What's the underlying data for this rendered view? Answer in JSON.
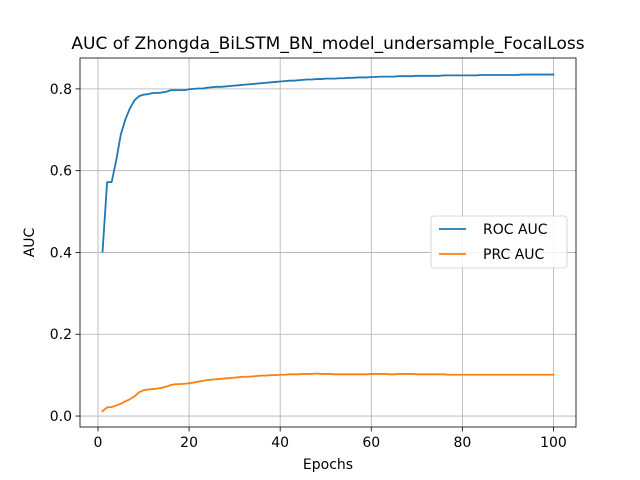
{
  "chart_data": {
    "type": "line",
    "title": "AUC of Zhongda_BiLSTM_BN_model_undersample_FocalLoss",
    "xlabel": "Epochs",
    "ylabel": "AUC",
    "xlim": [
      -3.95,
      104.95
    ],
    "ylim": [
      -0.0268,
      0.8755
    ],
    "xticks": [
      0,
      20,
      40,
      60,
      80,
      100
    ],
    "yticks": [
      0.0,
      0.2,
      0.4,
      0.6,
      0.8
    ],
    "xtick_labels": [
      "0",
      "20",
      "40",
      "60",
      "80",
      "100"
    ],
    "ytick_labels": [
      "0.0",
      "0.2",
      "0.4",
      "0.6",
      "0.8"
    ],
    "grid": true,
    "legend_position": "center-right",
    "series": [
      {
        "name": "ROC AUC",
        "color": "#1f77b4",
        "x": [
          1,
          2,
          3,
          4,
          5,
          6,
          7,
          8,
          9,
          10,
          11,
          12,
          13,
          14,
          15,
          16,
          17,
          18,
          19,
          20,
          21,
          22,
          23,
          24,
          25,
          26,
          27,
          28,
          29,
          30,
          31,
          32,
          33,
          34,
          35,
          36,
          37,
          38,
          39,
          40,
          41,
          42,
          43,
          44,
          45,
          46,
          47,
          48,
          49,
          50,
          51,
          52,
          53,
          54,
          55,
          56,
          57,
          58,
          59,
          60,
          61,
          62,
          63,
          64,
          65,
          66,
          67,
          68,
          69,
          70,
          71,
          72,
          73,
          74,
          75,
          76,
          77,
          78,
          79,
          80,
          81,
          82,
          83,
          84,
          85,
          86,
          87,
          88,
          89,
          90,
          91,
          92,
          93,
          94,
          95,
          96,
          97,
          98,
          99,
          100
        ],
        "y": [
          0.402,
          0.572,
          0.572,
          0.625,
          0.688,
          0.725,
          0.752,
          0.772,
          0.782,
          0.786,
          0.787,
          0.79,
          0.79,
          0.791,
          0.793,
          0.797,
          0.797,
          0.797,
          0.797,
          0.799,
          0.8,
          0.801,
          0.801,
          0.803,
          0.804,
          0.805,
          0.805,
          0.806,
          0.807,
          0.808,
          0.809,
          0.81,
          0.811,
          0.812,
          0.813,
          0.814,
          0.815,
          0.816,
          0.817,
          0.818,
          0.819,
          0.82,
          0.82,
          0.821,
          0.822,
          0.823,
          0.823,
          0.824,
          0.824,
          0.825,
          0.825,
          0.825,
          0.826,
          0.826,
          0.827,
          0.827,
          0.828,
          0.828,
          0.828,
          0.829,
          0.829,
          0.83,
          0.83,
          0.83,
          0.83,
          0.831,
          0.831,
          0.831,
          0.831,
          0.832,
          0.832,
          0.832,
          0.832,
          0.832,
          0.832,
          0.833,
          0.833,
          0.833,
          0.833,
          0.833,
          0.833,
          0.833,
          0.833,
          0.834,
          0.834,
          0.834,
          0.834,
          0.834,
          0.834,
          0.834,
          0.834,
          0.834,
          0.835,
          0.835,
          0.835,
          0.835,
          0.835,
          0.835,
          0.835,
          0.835
        ]
      },
      {
        "name": "PRC AUC",
        "color": "#ff7f0e",
        "x": [
          1,
          2,
          3,
          4,
          5,
          6,
          7,
          8,
          9,
          10,
          11,
          12,
          13,
          14,
          15,
          16,
          17,
          18,
          19,
          20,
          21,
          22,
          23,
          24,
          25,
          26,
          27,
          28,
          29,
          30,
          31,
          32,
          33,
          34,
          35,
          36,
          37,
          38,
          39,
          40,
          41,
          42,
          43,
          44,
          45,
          46,
          47,
          48,
          49,
          50,
          51,
          52,
          53,
          54,
          55,
          56,
          57,
          58,
          59,
          60,
          61,
          62,
          63,
          64,
          65,
          66,
          67,
          68,
          69,
          70,
          71,
          72,
          73,
          74,
          75,
          76,
          77,
          78,
          79,
          80,
          81,
          82,
          83,
          84,
          85,
          86,
          87,
          88,
          89,
          90,
          91,
          92,
          93,
          94,
          95,
          96,
          97,
          98,
          99,
          100
        ],
        "y": [
          0.012,
          0.021,
          0.022,
          0.026,
          0.03,
          0.036,
          0.041,
          0.048,
          0.058,
          0.063,
          0.065,
          0.066,
          0.067,
          0.069,
          0.072,
          0.076,
          0.078,
          0.078,
          0.079,
          0.08,
          0.082,
          0.084,
          0.086,
          0.088,
          0.089,
          0.09,
          0.091,
          0.092,
          0.093,
          0.094,
          0.095,
          0.096,
          0.096,
          0.097,
          0.098,
          0.099,
          0.099,
          0.1,
          0.1,
          0.101,
          0.101,
          0.102,
          0.102,
          0.102,
          0.103,
          0.103,
          0.103,
          0.104,
          0.103,
          0.103,
          0.103,
          0.102,
          0.102,
          0.102,
          0.102,
          0.102,
          0.102,
          0.102,
          0.102,
          0.103,
          0.103,
          0.103,
          0.103,
          0.102,
          0.102,
          0.103,
          0.103,
          0.103,
          0.103,
          0.102,
          0.102,
          0.102,
          0.102,
          0.102,
          0.102,
          0.102,
          0.101,
          0.101,
          0.101,
          0.101,
          0.101,
          0.101,
          0.101,
          0.101,
          0.101,
          0.101,
          0.101,
          0.101,
          0.101,
          0.101,
          0.101,
          0.101,
          0.101,
          0.101,
          0.101,
          0.101,
          0.101,
          0.101,
          0.101,
          0.101
        ]
      }
    ]
  }
}
